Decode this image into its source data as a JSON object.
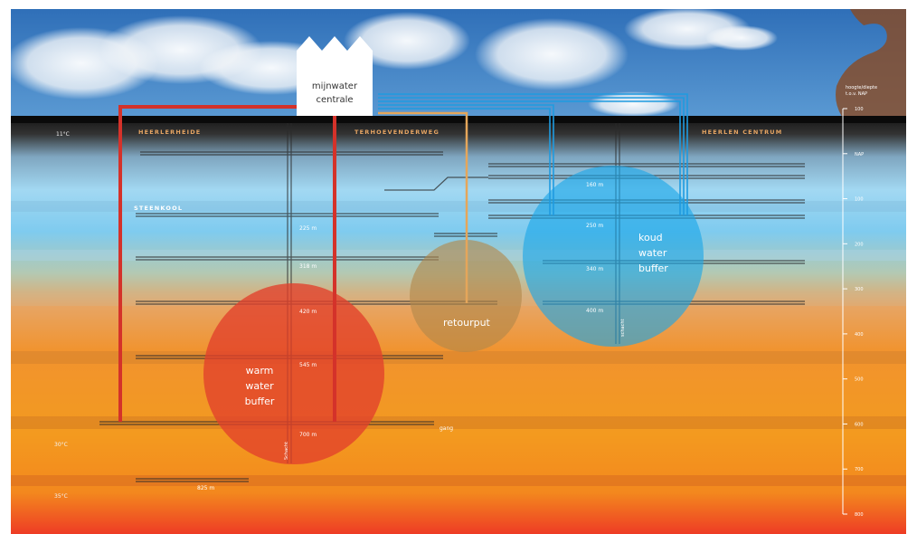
{
  "station": {
    "line1": "mijnwater",
    "line2": "centrale"
  },
  "neighbourhoods": [
    "HEERLERHEIDE",
    "TERHOEVENDERWEG",
    "HEERLEN CENTRUM"
  ],
  "layer_name": "STEENKOOL",
  "temperatures": [
    "11°C",
    "30°C",
    "35°C"
  ],
  "buffers": {
    "warm": [
      "warm",
      "water",
      "buffer"
    ],
    "cold": [
      "koud",
      "water",
      "buffer"
    ],
    "return": "retourput"
  },
  "depth_labels": {
    "heerlerheide": [
      "225 m",
      "318 m",
      "420 m",
      "545 m",
      "700 m",
      "825 m"
    ],
    "centrum": [
      "160 m",
      "250 m",
      "340 m",
      "400 m"
    ]
  },
  "shaft_labels": [
    "Schacht",
    "schacht"
  ],
  "gang_label": "gang",
  "axis": {
    "caption1": "hoogte/diepte",
    "caption2": "t.o.v. NAP",
    "ticks": [
      "100",
      "NAP",
      "100",
      "200",
      "300",
      "400",
      "500",
      "600",
      "700",
      "800"
    ]
  },
  "colors": {
    "warm_pipe": "#d4322a",
    "cold_pipe": "#1f9be0",
    "return_pipe": "#e5a65a",
    "warm_buffer": "#e2402b",
    "cold_buffer": "#1aa7e8",
    "return_buffer": "#c78a4e"
  }
}
